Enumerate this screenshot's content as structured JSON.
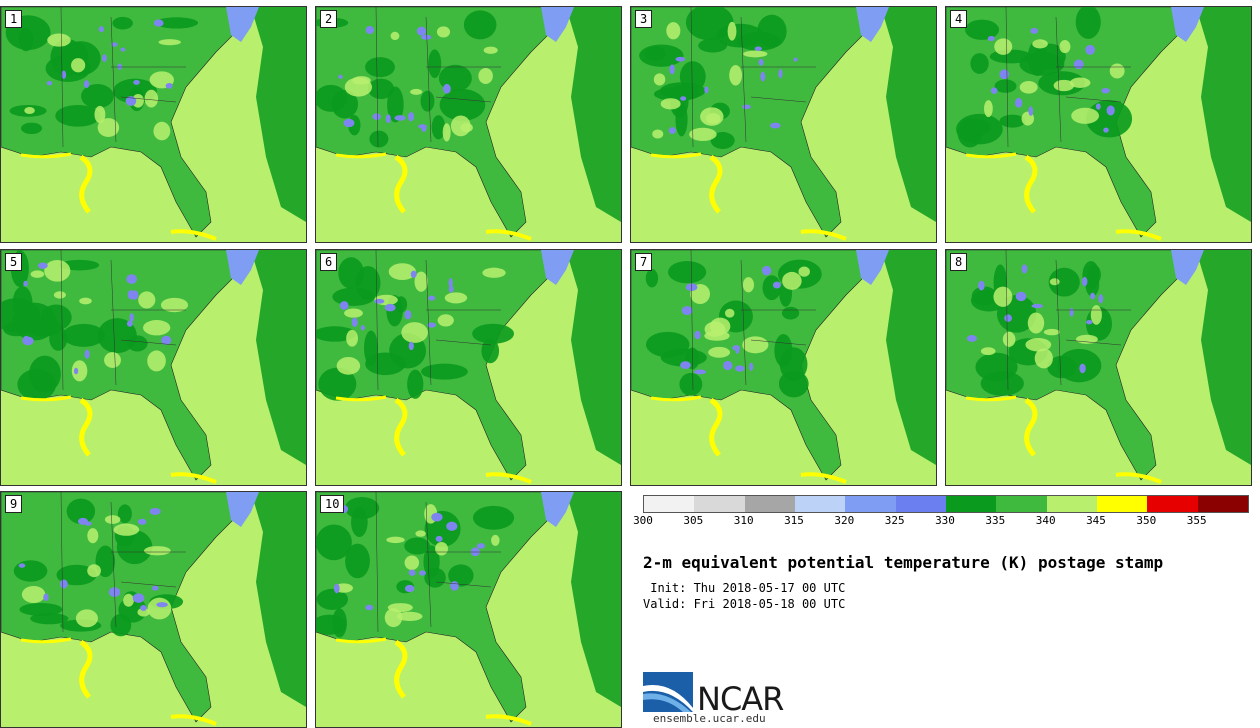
{
  "title": "2-m equivalent potential temperature (K) postage stamp",
  "init": " Init: Thu 2018-05-17 00 UTC",
  "valid": "Valid: Fri 2018-05-18 00 UTC",
  "site": "ensemble.ucar.edu",
  "logo_text": "NCAR",
  "panels": [
    "1",
    "2",
    "3",
    "4",
    "5",
    "6",
    "7",
    "8",
    "9",
    "10"
  ],
  "colorbar": {
    "ticks": [
      "300",
      "305",
      "310",
      "315",
      "320",
      "325",
      "330",
      "335",
      "340",
      "345",
      "350",
      "355"
    ],
    "colors": [
      "#f2f2f2",
      "#d9d9d9",
      "#a6a6a6",
      "#bdd2f7",
      "#7f9df2",
      "#6b7ff0",
      "#0a9a1e",
      "#3fba3f",
      "#b8f06e",
      "#ffff00",
      "#e60000",
      "#8b0000"
    ]
  },
  "field_colors": {
    "ocean": "#b8f06e",
    "land": "#3fba3f",
    "dark": "#0a9a1e",
    "purple": "#7f85f0",
    "yellow": "#ffff00"
  }
}
